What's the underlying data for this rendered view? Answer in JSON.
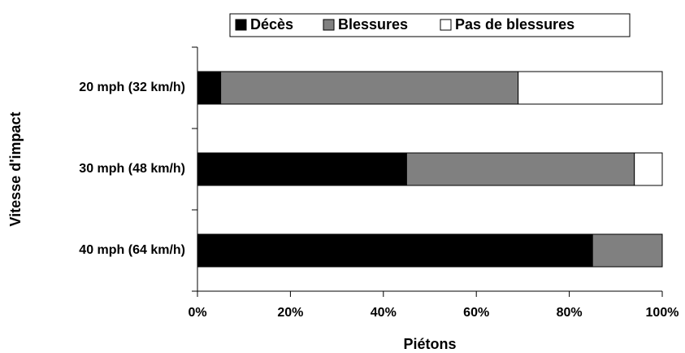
{
  "chart_data": {
    "type": "stacked_barh",
    "xlabel": "Piétons",
    "ylabel": "Vitesse d'impact",
    "categories": [
      "20 mph (32 km/h)",
      "30 mph (48 km/h)",
      "40 mph (64 km/h)"
    ],
    "series": [
      {
        "name": "Décès",
        "color": "#000000",
        "values": [
          5,
          45,
          85
        ]
      },
      {
        "name": "Blessures",
        "color": "#808080",
        "values": [
          64,
          49,
          15
        ]
      },
      {
        "name": "Pas de blessures",
        "color": "#ffffff",
        "values": [
          31,
          6,
          0
        ]
      }
    ],
    "xlim": [
      0,
      100
    ],
    "xticks": [
      {
        "value": 0,
        "label": "0%"
      },
      {
        "value": 20,
        "label": "20%"
      },
      {
        "value": 40,
        "label": "40%"
      },
      {
        "value": 60,
        "label": "60%"
      },
      {
        "value": 80,
        "label": "80%"
      },
      {
        "value": 100,
        "label": "100%"
      }
    ],
    "legend": "top"
  }
}
